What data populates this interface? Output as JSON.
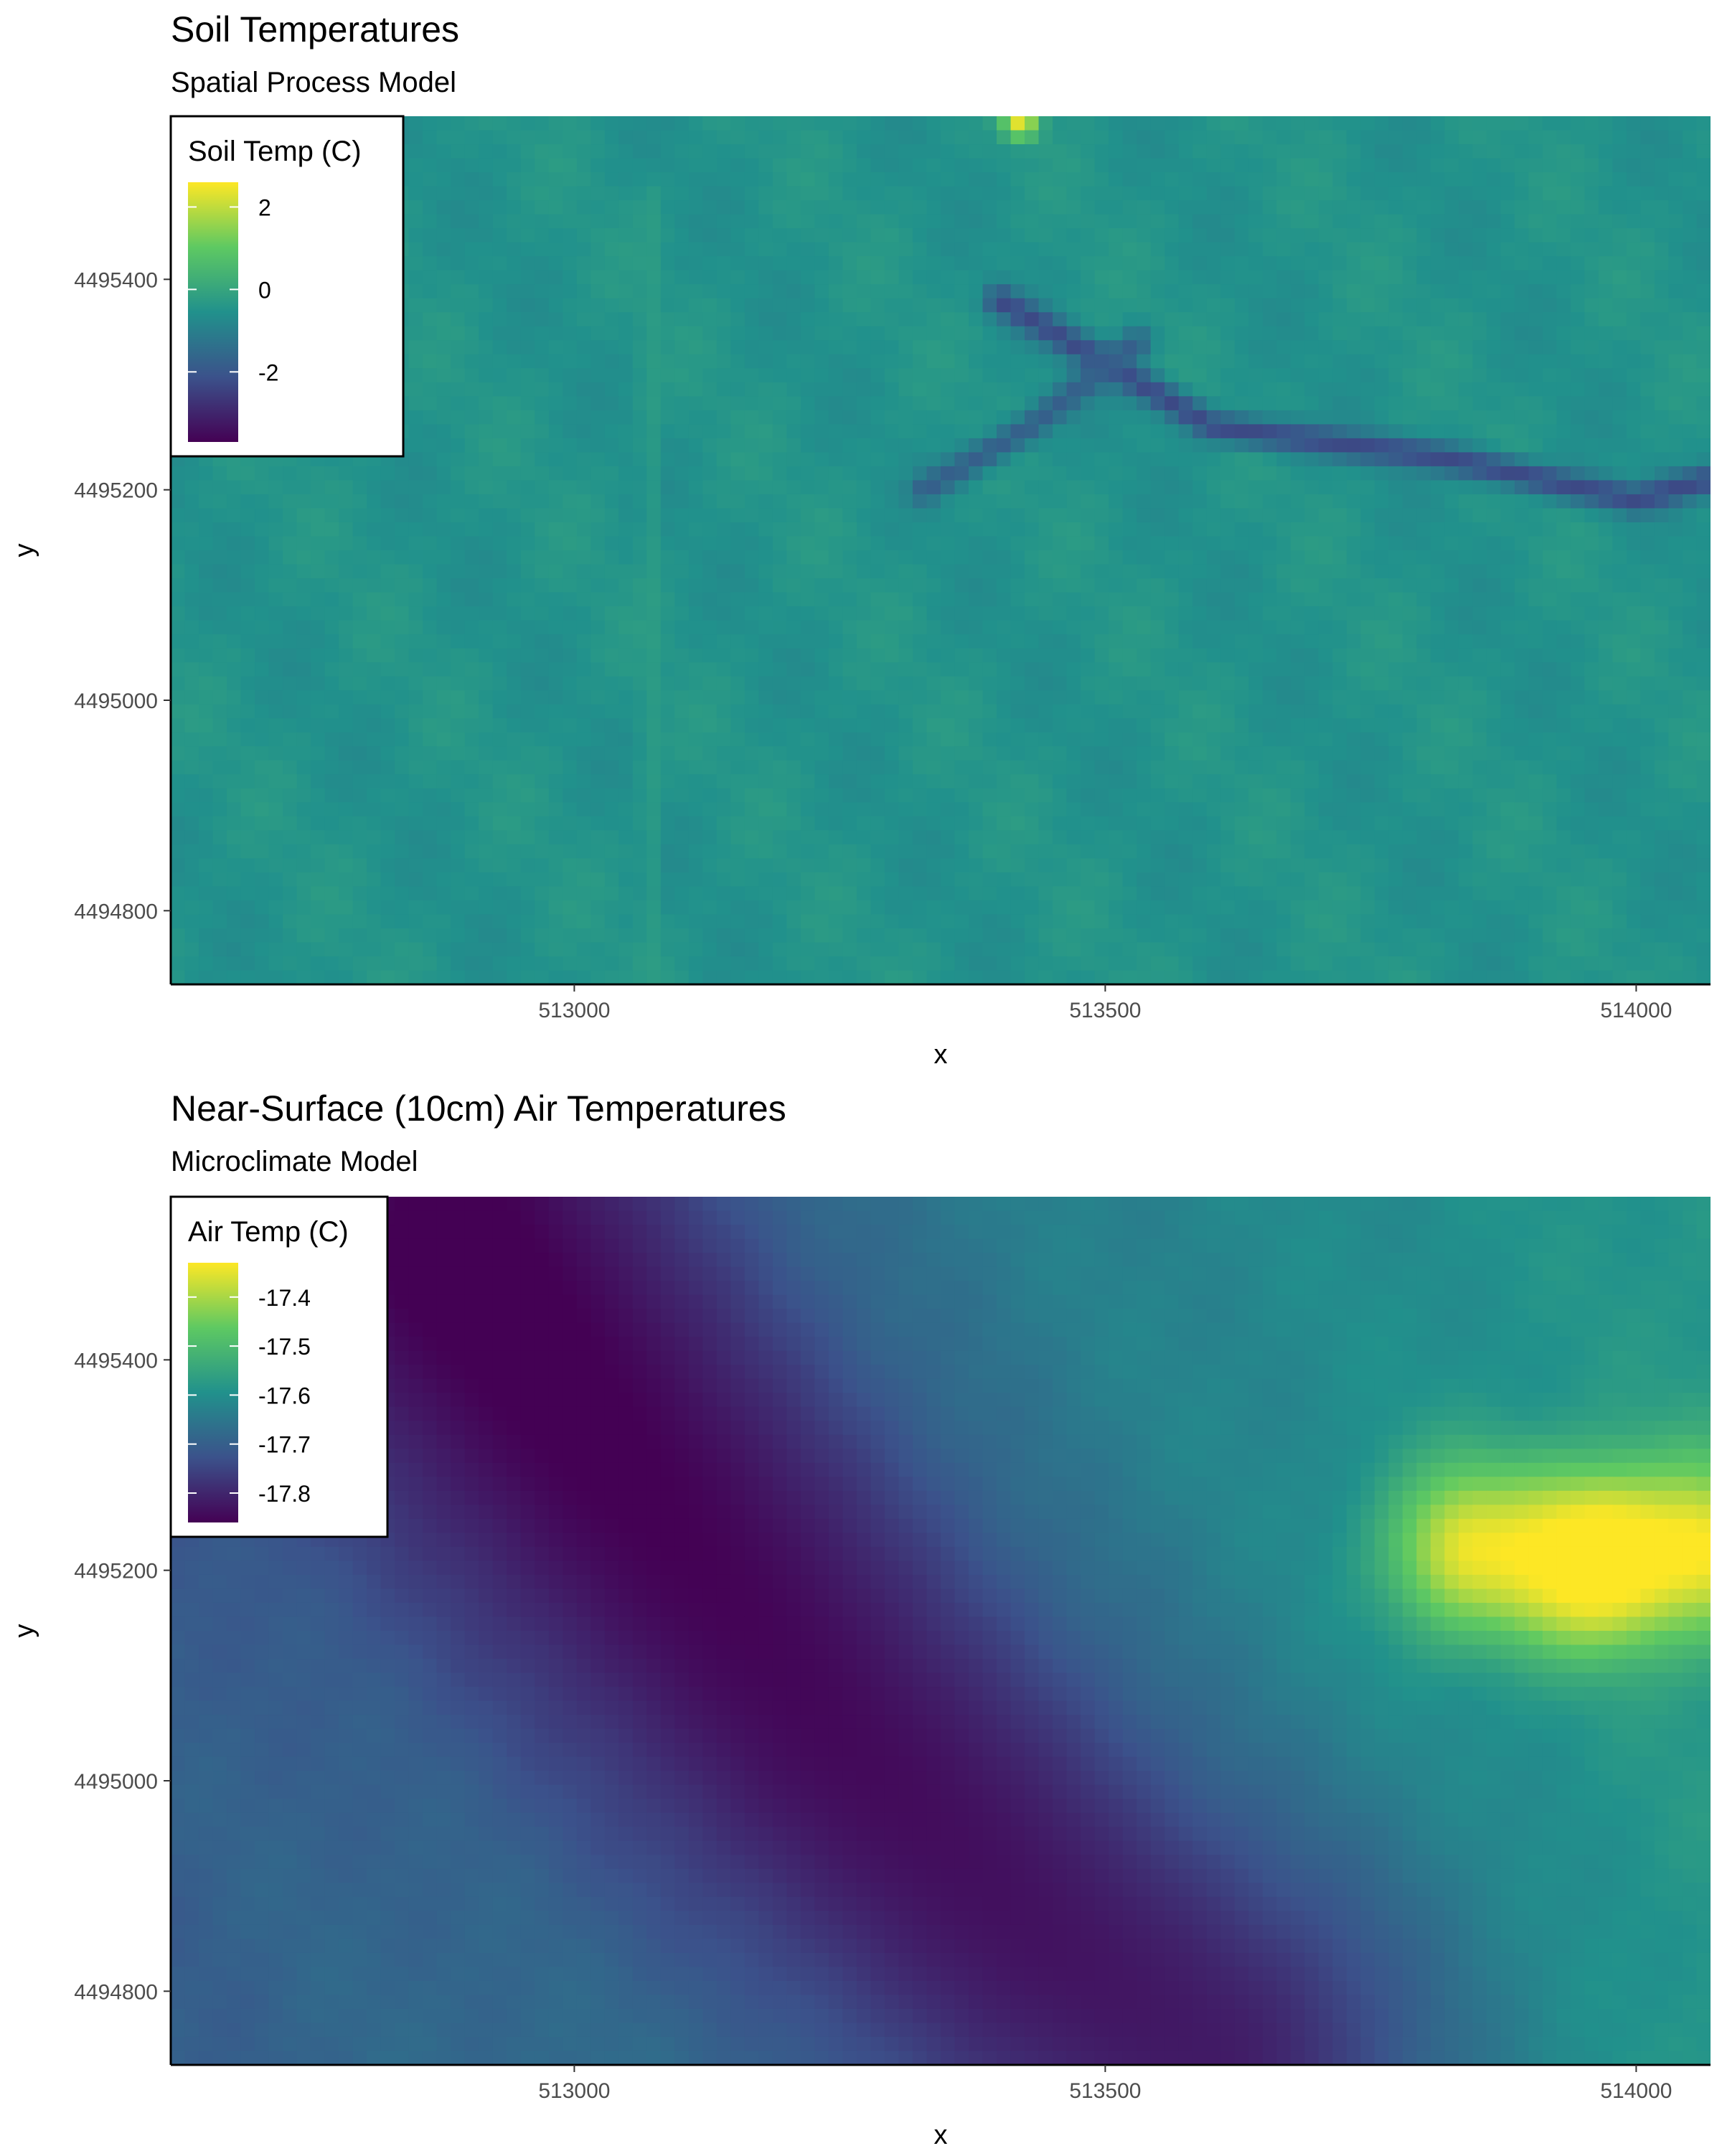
{
  "chart_data": [
    {
      "type": "heatmap",
      "title": "Soil Temperatures",
      "subtitle": "Spatial Process Model",
      "xlabel": "x",
      "ylabel": "y",
      "xlim": [
        512620,
        514070
      ],
      "ylim": [
        4494730,
        4495555
      ],
      "x_ticks": [
        513000,
        513500,
        514000
      ],
      "y_ticks": [
        4494800,
        4495000,
        4495200,
        4495400
      ],
      "x_tick_labels": [
        "513000",
        "513500",
        "514000"
      ],
      "y_tick_labels": [
        "4494800",
        "4495000",
        "4495200",
        "4495400"
      ],
      "grid": false,
      "colormap": "viridis",
      "colors": [
        "#440154",
        "#3b528b",
        "#21918c",
        "#5ec962",
        "#fde725"
      ],
      "legend": {
        "title": "Soil Temp (C)",
        "placement": "top-left",
        "range": [
          -3.7,
          2.6
        ],
        "breaks": [
          2,
          0,
          -2
        ],
        "break_labels": [
          "2",
          "0",
          "-2"
        ]
      },
      "field": {
        "base_value": -0.5,
        "description_features": [
          {
            "kind": "channel",
            "points": [
              [
                513400,
                4495380
              ],
              [
                513600,
                4495260
              ],
              [
                513820,
                4495230
              ],
              [
                514000,
                4495190
              ],
              [
                514070,
                4495210
              ]
            ],
            "value": -2.3
          },
          {
            "kind": "channel",
            "points": [
              [
                513330,
                4495200
              ],
              [
                513430,
                4495260
              ],
              [
                513530,
                4495340
              ]
            ],
            "value": -1.8
          },
          {
            "kind": "road",
            "points": [
              [
                513070,
                4495480
              ],
              [
                513070,
                4494740
              ]
            ],
            "value": -0.2
          },
          {
            "kind": "hotspot",
            "x": 513420,
            "y": 4495550,
            "value": 2.4
          }
        ]
      }
    },
    {
      "type": "heatmap",
      "title": "Near-Surface (10cm) Air Temperatures",
      "subtitle": "Microclimate Model",
      "xlabel": "x",
      "ylabel": "y",
      "xlim": [
        512620,
        514070
      ],
      "ylim": [
        4494730,
        4495555
      ],
      "x_ticks": [
        513000,
        513500,
        514000
      ],
      "y_ticks": [
        4494800,
        4495000,
        4495200,
        4495400
      ],
      "x_tick_labels": [
        "513000",
        "513500",
        "514000"
      ],
      "y_tick_labels": [
        "4494800",
        "4495000",
        "4495200",
        "4495400"
      ],
      "grid": false,
      "colormap": "viridis",
      "colors": [
        "#440154",
        "#3b528b",
        "#21918c",
        "#5ec962",
        "#fde725"
      ],
      "legend": {
        "title": "Air Temp (C)",
        "placement": "top-left",
        "range": [
          -17.86,
          -17.33
        ],
        "breaks": [
          -17.4,
          -17.5,
          -17.6,
          -17.7,
          -17.8
        ],
        "break_labels": [
          "-17.4",
          "-17.5",
          "-17.6",
          "-17.7",
          "-17.8"
        ]
      },
      "field": {
        "base_value": -17.64,
        "description_features": [
          {
            "kind": "cold-band",
            "points": [
              [
                512900,
                4495500
              ],
              [
                513050,
                4495300
              ],
              [
                513250,
                4495050
              ],
              [
                513450,
                4494850
              ],
              [
                513600,
                4494740
              ]
            ],
            "value": -17.84
          },
          {
            "kind": "warm-zone",
            "points": [
              [
                513850,
                4495220
              ],
              [
                513950,
                4495210
              ],
              [
                514050,
                4495220
              ]
            ],
            "value": -17.38
          },
          {
            "kind": "hotspot",
            "x": 513960,
            "y": 4495210,
            "value": -17.35
          }
        ]
      }
    }
  ]
}
